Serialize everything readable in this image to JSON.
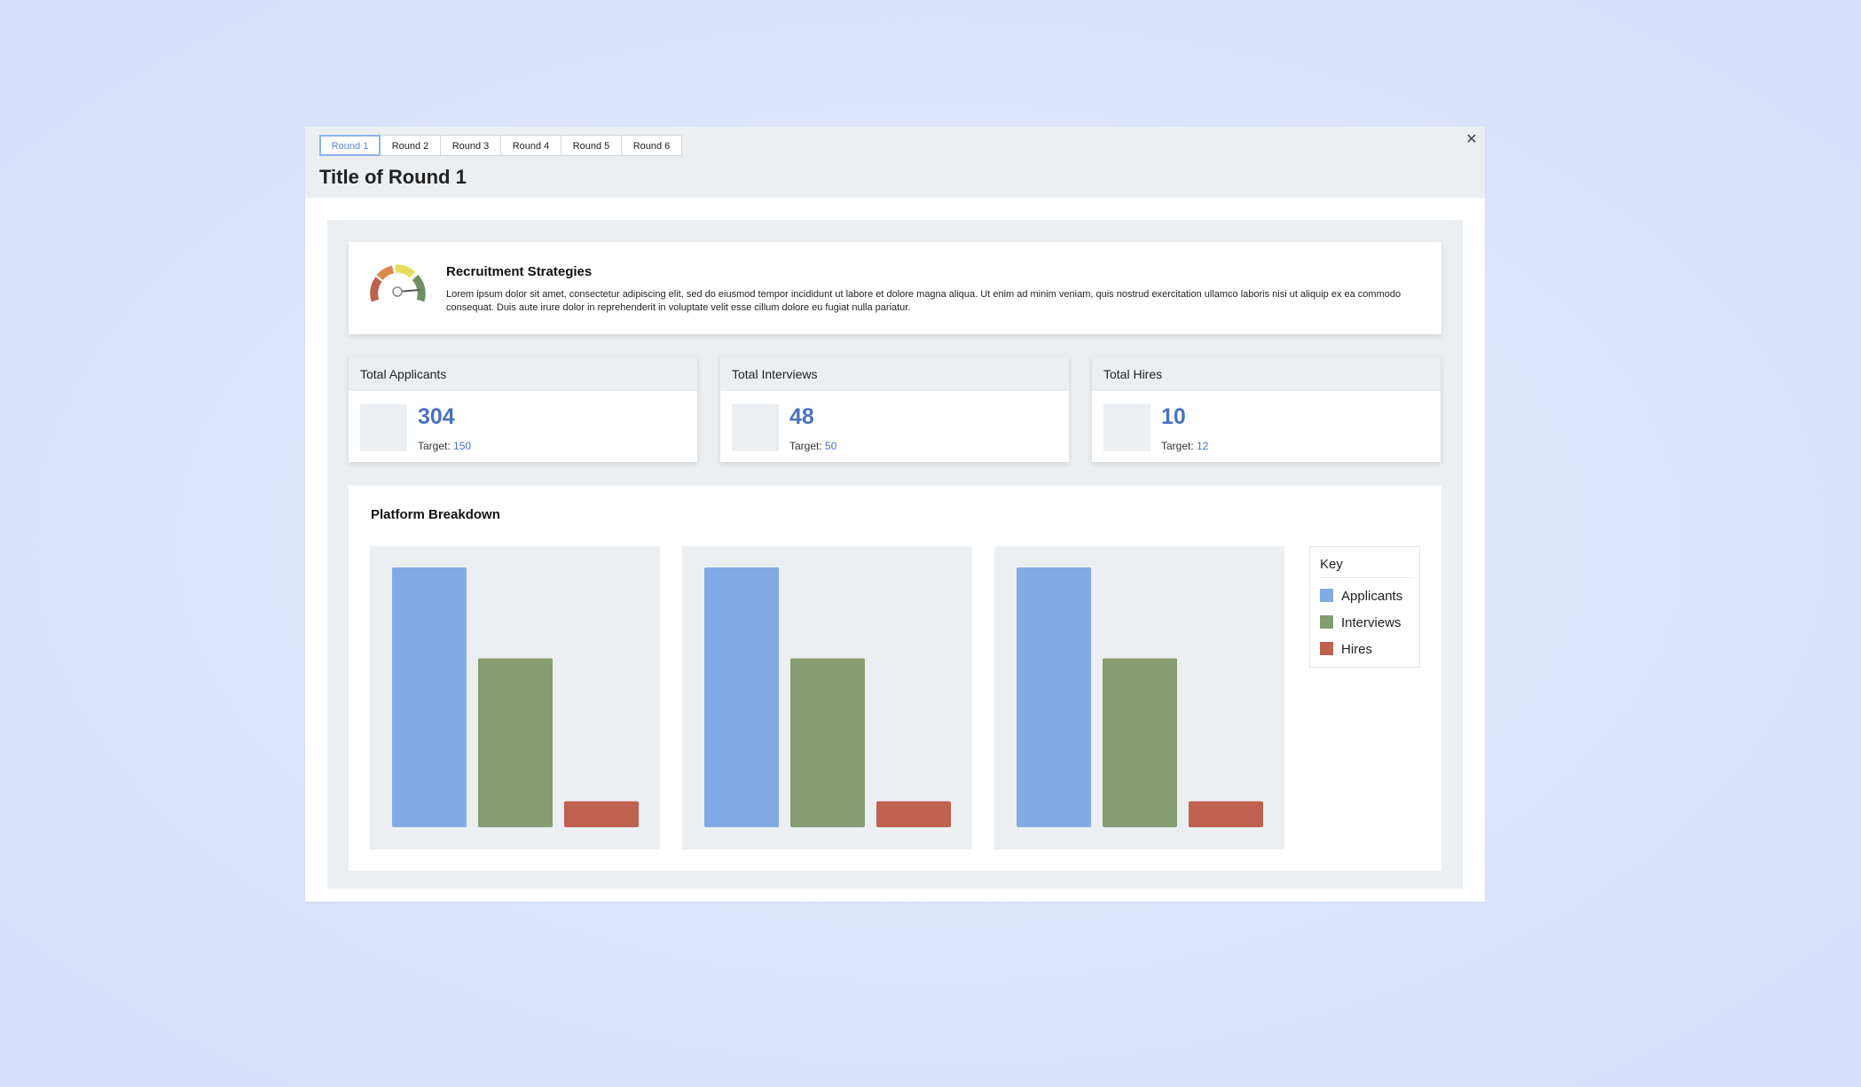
{
  "tabs": [
    {
      "label": "Round 1",
      "active": true
    },
    {
      "label": "Round 2",
      "active": false
    },
    {
      "label": "Round 3",
      "active": false
    },
    {
      "label": "Round 4",
      "active": false
    },
    {
      "label": "Round 5",
      "active": false
    },
    {
      "label": "Round 6",
      "active": false
    }
  ],
  "page_title": "Title of Round 1",
  "close_icon": "close-icon",
  "strategy": {
    "icon": "gauge-icon",
    "title": "Recruitment Strategies",
    "text": "Lorem ipsum dolor sit amet, consectetur adipiscing elit, sed do eiusmod tempor incididunt ut labore et dolore magna aliqua. Ut enim ad minim veniam, quis nostrud exercitation ullamco laboris nisi ut aliquip ex ea commodo consequat. Duis aute irure dolor in reprehenderit in voluptate velit esse cillum dolore eu fugiat nulla pariatur."
  },
  "stats": [
    {
      "label": "Total Applicants",
      "value": "304",
      "target_label": "Target:",
      "target_value": "150"
    },
    {
      "label": "Total Interviews",
      "value": "48",
      "target_label": "Target:",
      "target_value": "50"
    },
    {
      "label": "Total Hires",
      "value": "10",
      "target_label": "Target:",
      "target_value": "12"
    }
  ],
  "breakdown": {
    "title": "Platform Breakdown"
  },
  "legend": {
    "title": "Key",
    "items": [
      {
        "label": "Applicants",
        "color": "#82abe5"
      },
      {
        "label": "Interviews",
        "color": "#869c71"
      },
      {
        "label": "Hires",
        "color": "#c0604f"
      }
    ]
  },
  "colors": {
    "accent": "#4a72c0",
    "tab_active": "#5b86d8"
  },
  "chart_data": [
    {
      "type": "bar",
      "title": "",
      "categories": [
        "Applicants",
        "Interviews",
        "Hires"
      ],
      "series": [
        {
          "name": "Applicants",
          "values": [
            100,
            null,
            null
          ]
        },
        {
          "name": "Interviews",
          "values": [
            null,
            65,
            null
          ]
        },
        {
          "name": "Hires",
          "values": [
            null,
            null,
            10
          ]
        }
      ],
      "values": [
        100,
        65,
        10
      ],
      "ylim": [
        0,
        100
      ],
      "grid": false
    },
    {
      "type": "bar",
      "title": "",
      "categories": [
        "Applicants",
        "Interviews",
        "Hires"
      ],
      "values": [
        100,
        65,
        10
      ],
      "ylim": [
        0,
        100
      ],
      "grid": false
    },
    {
      "type": "bar",
      "title": "",
      "categories": [
        "Applicants",
        "Interviews",
        "Hires"
      ],
      "values": [
        100,
        65,
        10
      ],
      "ylim": [
        0,
        100
      ],
      "grid": false
    }
  ]
}
